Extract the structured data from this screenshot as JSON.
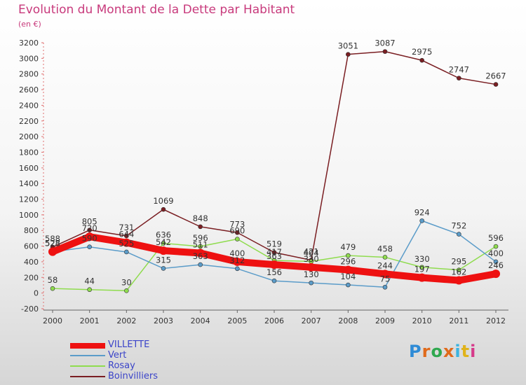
{
  "title": "Evolution du Montant de la Dette par Habitant",
  "subtitle": "(en €)",
  "logo": {
    "text": "Proxiti",
    "colors": [
      "#2e8bd6",
      "#e06a1b",
      "#2fa84f",
      "#e06a1b",
      "#3bb3e0",
      "#e0b31b",
      "#d63a8a"
    ]
  },
  "chart_data": {
    "type": "line",
    "x": [
      "2000",
      "2001",
      "2002",
      "2003",
      "2004",
      "2005",
      "2006",
      "2007",
      "2008",
      "2009",
      "2010",
      "2011",
      "2012"
    ],
    "ylim": [
      -200,
      3200
    ],
    "yticks": [
      "-200",
      "0",
      "200",
      "400",
      "600",
      "800",
      "1000",
      "1200",
      "1400",
      "1600",
      "1800",
      "2000",
      "2200",
      "2400",
      "2600",
      "2800",
      "3000",
      "3200"
    ],
    "grid": false,
    "legend_position": "bottom-left",
    "series": [
      {
        "name": "VILLETTE",
        "color": "#ee1111",
        "width": 10,
        "values": [
          528,
          720,
          644,
          542,
          511,
          400,
          363,
          330,
          296,
          244,
          197,
          162,
          246
        ],
        "labels": [
          "528",
          "720",
          "644",
          "542",
          "511",
          "400",
          "363",
          "330",
          "296",
          "244",
          "197",
          "162",
          "246"
        ]
      },
      {
        "name": "Vert",
        "color": "#5b9cc9",
        "width": 1.5,
        "values": [
          528,
          590,
          525,
          315,
          363,
          312,
          156,
          130,
          104,
          75,
          924,
          752,
          400
        ],
        "labels": [
          "528",
          "590",
          "525",
          "315",
          "363",
          "312",
          "156",
          "130",
          "104",
          "75",
          "924",
          "752",
          "400"
        ]
      },
      {
        "name": "Rosay",
        "color": "#8fdc4e",
        "width": 1.5,
        "values": [
          58,
          44,
          30,
          636,
          596,
          690,
          417,
          404,
          479,
          458,
          330,
          295,
          596
        ],
        "labels": [
          "58",
          "44",
          "30",
          "636",
          "596",
          "690",
          "417",
          "404",
          "479",
          "458",
          "330",
          "295",
          "596"
        ]
      },
      {
        "name": "Boinvilliers",
        "color": "#7a1e22",
        "width": 1.5,
        "values": [
          588,
          805,
          731,
          1069,
          848,
          773,
          519,
          421,
          3051,
          3087,
          2975,
          2747,
          2667
        ],
        "labels": [
          "588",
          "805",
          "731",
          "1069",
          "848",
          "773",
          "519",
          "421",
          "3051",
          "3087",
          "2975",
          "2747",
          "2667"
        ]
      }
    ]
  }
}
